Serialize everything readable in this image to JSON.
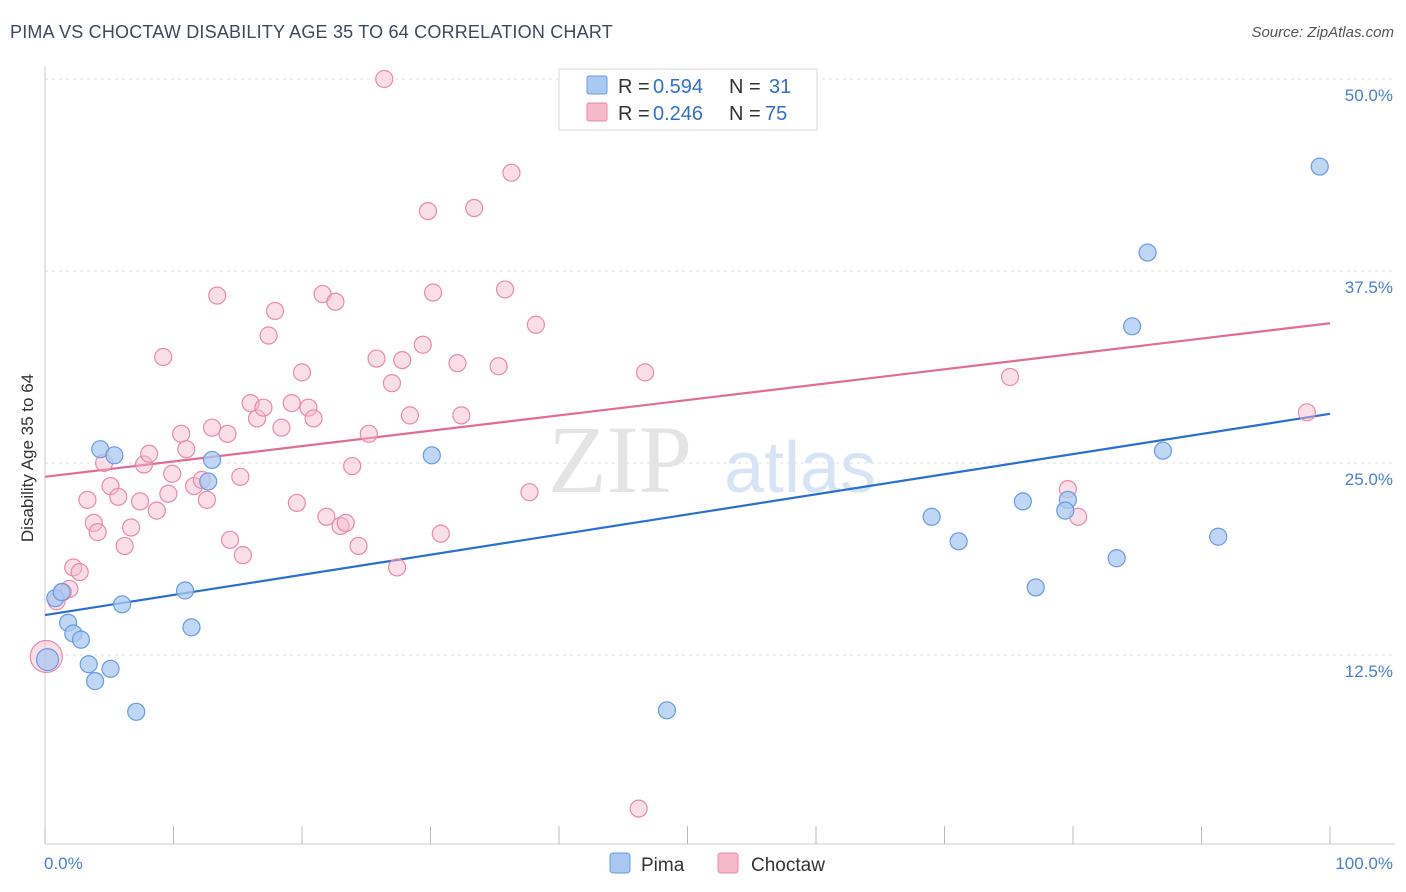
{
  "title": "PIMA VS CHOCTAW DISABILITY AGE 35 TO 64 CORRELATION CHART",
  "source": "Source: ZipAtlas.com",
  "watermark": {
    "zip": "ZIP",
    "atlas": "atlas"
  },
  "colors": {
    "pima_fill": "#a9c8f2",
    "pima_stroke": "#6a9be0",
    "pima_line": "#2a6fd0",
    "choctaw_fill": "#f6b8cb",
    "choctaw_stroke": "#e88aa8",
    "choctaw_line": "#e06d98",
    "grid": "#dddddd",
    "axis_text": "#4a7fd0"
  },
  "legend": {
    "rows": [
      {
        "series": "pima",
        "r_label": "R = ",
        "r_value": "0.594",
        "n_label": "N = ",
        "n_value": "31"
      },
      {
        "series": "choctaw",
        "r_label": "R = ",
        "r_value": "0.246",
        "n_label": "N = ",
        "n_value": "75"
      }
    ]
  },
  "chart_data": {
    "type": "scatter",
    "title": "PIMA VS CHOCTAW DISABILITY AGE 35 TO 64 CORRELATION CHART",
    "xlabel": "",
    "ylabel": "Disability Age 35 to 64",
    "xlim": [
      0,
      100
    ],
    "ylim": [
      2,
      51
    ],
    "x_tick_labels": [
      "0.0%",
      "100.0%"
    ],
    "y_ticks": [
      12.5,
      25.0,
      37.5,
      50.0
    ],
    "y_tick_labels": [
      "12.5%",
      "25.0%",
      "37.5%",
      "50.0%"
    ],
    "legend_entries": [
      "Pima",
      "Choctaw"
    ],
    "series": [
      {
        "name": "Pima",
        "r": 0.594,
        "n": 31,
        "trend": {
          "x": [
            0,
            100
          ],
          "y": [
            15.1,
            28.2
          ]
        },
        "points": [
          {
            "x": 0.2,
            "y": 12.2
          },
          {
            "x": 0.8,
            "y": 16.2
          },
          {
            "x": 1.3,
            "y": 16.6
          },
          {
            "x": 1.8,
            "y": 14.6
          },
          {
            "x": 2.2,
            "y": 13.9
          },
          {
            "x": 2.8,
            "y": 13.5
          },
          {
            "x": 3.4,
            "y": 11.9
          },
          {
            "x": 3.9,
            "y": 10.8
          },
          {
            "x": 4.3,
            "y": 25.9
          },
          {
            "x": 5.1,
            "y": 11.6
          },
          {
            "x": 5.4,
            "y": 25.5
          },
          {
            "x": 6.0,
            "y": 15.8
          },
          {
            "x": 7.1,
            "y": 8.8
          },
          {
            "x": 10.9,
            "y": 16.7
          },
          {
            "x": 11.4,
            "y": 14.3
          },
          {
            "x": 12.7,
            "y": 23.8
          },
          {
            "x": 13.0,
            "y": 25.2
          },
          {
            "x": 30.1,
            "y": 25.5
          },
          {
            "x": 48.4,
            "y": 8.9
          },
          {
            "x": 69.0,
            "y": 21.5
          },
          {
            "x": 71.1,
            "y": 19.9
          },
          {
            "x": 76.1,
            "y": 22.5
          },
          {
            "x": 77.1,
            "y": 16.9
          },
          {
            "x": 79.6,
            "y": 22.6
          },
          {
            "x": 79.4,
            "y": 21.9
          },
          {
            "x": 83.4,
            "y": 18.8
          },
          {
            "x": 84.6,
            "y": 33.9
          },
          {
            "x": 85.8,
            "y": 38.7
          },
          {
            "x": 87.0,
            "y": 25.8
          },
          {
            "x": 91.3,
            "y": 20.2
          },
          {
            "x": 99.2,
            "y": 44.3
          }
        ]
      },
      {
        "name": "Choctaw",
        "r": 0.246,
        "n": 75,
        "trend": {
          "x": [
            0,
            100
          ],
          "y": [
            24.1,
            34.1
          ]
        },
        "points": [
          {
            "x": 0.1,
            "y": 12.4
          },
          {
            "x": 0.9,
            "y": 16.0
          },
          {
            "x": 1.4,
            "y": 16.6
          },
          {
            "x": 1.9,
            "y": 16.8
          },
          {
            "x": 2.2,
            "y": 18.2
          },
          {
            "x": 2.7,
            "y": 17.9
          },
          {
            "x": 3.3,
            "y": 22.6
          },
          {
            "x": 3.8,
            "y": 21.1
          },
          {
            "x": 4.1,
            "y": 20.5
          },
          {
            "x": 4.6,
            "y": 25.0
          },
          {
            "x": 5.1,
            "y": 23.5
          },
          {
            "x": 5.7,
            "y": 22.8
          },
          {
            "x": 6.2,
            "y": 19.6
          },
          {
            "x": 6.7,
            "y": 20.8
          },
          {
            "x": 7.4,
            "y": 22.5
          },
          {
            "x": 7.7,
            "y": 24.9
          },
          {
            "x": 8.1,
            "y": 25.6
          },
          {
            "x": 8.7,
            "y": 21.9
          },
          {
            "x": 9.2,
            "y": 31.9
          },
          {
            "x": 9.6,
            "y": 23.0
          },
          {
            "x": 9.9,
            "y": 24.3
          },
          {
            "x": 10.6,
            "y": 26.9
          },
          {
            "x": 11.0,
            "y": 25.9
          },
          {
            "x": 11.6,
            "y": 23.5
          },
          {
            "x": 12.2,
            "y": 23.9
          },
          {
            "x": 12.6,
            "y": 22.6
          },
          {
            "x": 13.0,
            "y": 27.3
          },
          {
            "x": 13.4,
            "y": 35.9
          },
          {
            "x": 14.2,
            "y": 26.9
          },
          {
            "x": 14.4,
            "y": 20.0
          },
          {
            "x": 15.2,
            "y": 24.1
          },
          {
            "x": 15.4,
            "y": 19.0
          },
          {
            "x": 16.0,
            "y": 28.9
          },
          {
            "x": 16.5,
            "y": 27.9
          },
          {
            "x": 17.0,
            "y": 28.6
          },
          {
            "x": 17.4,
            "y": 33.3
          },
          {
            "x": 17.9,
            "y": 34.9
          },
          {
            "x": 18.4,
            "y": 27.3
          },
          {
            "x": 19.2,
            "y": 28.9
          },
          {
            "x": 19.6,
            "y": 22.4
          },
          {
            "x": 20.0,
            "y": 30.9
          },
          {
            "x": 20.5,
            "y": 28.6
          },
          {
            "x": 20.9,
            "y": 27.9
          },
          {
            "x": 21.6,
            "y": 36.0
          },
          {
            "x": 21.9,
            "y": 21.5
          },
          {
            "x": 22.6,
            "y": 35.5
          },
          {
            "x": 23.0,
            "y": 20.9
          },
          {
            "x": 23.4,
            "y": 21.1
          },
          {
            "x": 23.9,
            "y": 24.8
          },
          {
            "x": 24.4,
            "y": 19.6
          },
          {
            "x": 25.2,
            "y": 26.9
          },
          {
            "x": 25.8,
            "y": 31.8
          },
          {
            "x": 26.4,
            "y": 50.0
          },
          {
            "x": 27.0,
            "y": 30.2
          },
          {
            "x": 27.4,
            "y": 18.2
          },
          {
            "x": 27.8,
            "y": 31.7
          },
          {
            "x": 28.4,
            "y": 28.1
          },
          {
            "x": 29.4,
            "y": 32.7
          },
          {
            "x": 29.8,
            "y": 41.4
          },
          {
            "x": 30.2,
            "y": 36.1
          },
          {
            "x": 30.8,
            "y": 20.4
          },
          {
            "x": 32.1,
            "y": 31.5
          },
          {
            "x": 32.4,
            "y": 28.1
          },
          {
            "x": 33.4,
            "y": 41.6
          },
          {
            "x": 35.3,
            "y": 31.3
          },
          {
            "x": 35.8,
            "y": 36.3
          },
          {
            "x": 36.3,
            "y": 43.9
          },
          {
            "x": 37.7,
            "y": 23.1
          },
          {
            "x": 38.2,
            "y": 34.0
          },
          {
            "x": 46.2,
            "y": 2.5
          },
          {
            "x": 46.7,
            "y": 30.9
          },
          {
            "x": 75.1,
            "y": 30.6
          },
          {
            "x": 79.6,
            "y": 23.3
          },
          {
            "x": 80.4,
            "y": 21.5
          },
          {
            "x": 98.2,
            "y": 28.3
          }
        ]
      }
    ]
  }
}
